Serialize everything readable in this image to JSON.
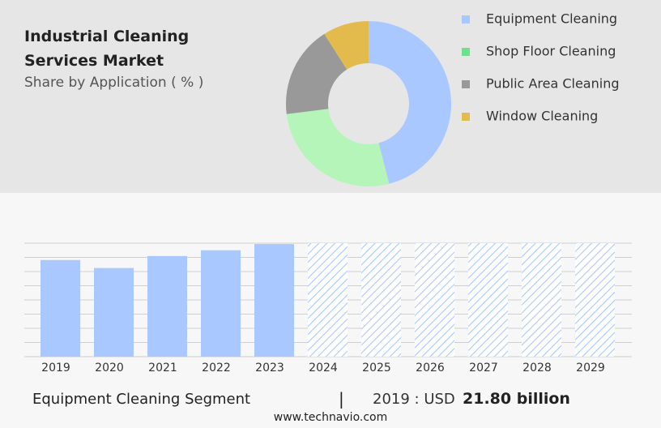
{
  "chart_data": [
    {
      "type": "donut",
      "title": "Industrial Cleaning Services Market",
      "subtitle": "Share by Application ( % )",
      "categories": [
        "Equipment Cleaning",
        "Shop Floor Cleaning",
        "Public Area Cleaning",
        "Window Cleaning"
      ],
      "values": [
        46,
        27,
        18,
        9
      ],
      "colors": [
        "#a9c8ff",
        "#b5f5b9",
        "#999999",
        "#e2bb4c"
      ],
      "legend_colors": [
        "#a9c8ff",
        "#6fe08c",
        "#999999",
        "#e2bb4c"
      ],
      "legend": "right"
    },
    {
      "type": "bar",
      "categories": [
        "2019",
        "2020",
        "2021",
        "2022",
        "2023",
        "2024",
        "2025",
        "2026",
        "2027",
        "2028",
        "2029"
      ],
      "values": [
        21.8,
        20.0,
        22.7,
        24.0,
        25.4,
        null,
        null,
        null,
        null,
        null,
        null
      ],
      "color": "#a9c8ff",
      "forecast_color": "#a9c8ff",
      "ylim": [
        0,
        25.6
      ],
      "yticks": [
        0,
        3.2,
        6.4,
        9.6,
        12.8,
        16,
        19.2,
        22.4,
        25.6
      ],
      "grid": true
    }
  ],
  "summary": {
    "segment": "Equipment Cleaning Segment",
    "separator": "|",
    "year_label": "2019 : USD",
    "value": "21.80 billion",
    "site": "www.technavio.com"
  }
}
